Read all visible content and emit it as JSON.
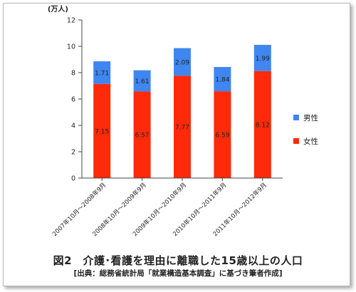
{
  "chart_data": {
    "type": "bar",
    "stacked": true,
    "unit_label": "(万人)",
    "categories": [
      "2007年10月～2008年9月",
      "2008年10月～2009年9月",
      "2009年10月～2010年9月",
      "2010年10月～2011年9月",
      "2011年10月～2012年9月"
    ],
    "series": [
      {
        "name": "女性",
        "color": "#ff2a0a",
        "values": [
          7.15,
          6.57,
          7.77,
          6.59,
          8.12
        ]
      },
      {
        "name": "男性",
        "color": "#3f86f0",
        "values": [
          1.71,
          1.61,
          2.09,
          1.84,
          1.99
        ]
      }
    ],
    "data_labels": [
      [
        "7.15",
        "6.57",
        "7.77",
        "6.59",
        "8.12"
      ],
      [
        "1.71",
        "1.61",
        "2.09",
        "1.84",
        "1.99"
      ]
    ],
    "ylim": [
      0,
      12
    ],
    "yticks": [
      "0",
      "2",
      "4",
      "6",
      "8",
      "10",
      "12"
    ],
    "grid": false,
    "legend_position": "right"
  },
  "caption": {
    "title": "図2　介護･看護を理由に離職した15歳以上の人口",
    "source": "[出典：総務省統計局「就業構造基本調査」に基づき筆者作成]"
  }
}
